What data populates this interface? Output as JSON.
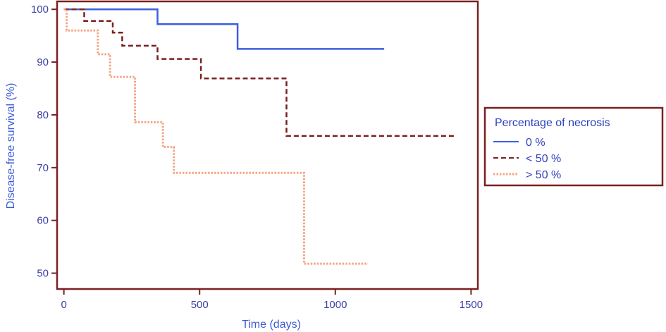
{
  "chart_data": {
    "type": "line",
    "step": true,
    "title": "",
    "xlabel": "Time (days)",
    "ylabel": "Disease-free survival (%)",
    "xlim": [
      -25,
      1525
    ],
    "ylim": [
      47,
      101.5
    ],
    "xticks": [
      0,
      500,
      1000,
      1500
    ],
    "yticks": [
      50,
      60,
      70,
      80,
      90,
      100
    ],
    "grid": false,
    "legend": {
      "title": "Percentage of necrosis",
      "placement": "right"
    },
    "series": [
      {
        "name": "0 %",
        "color": "#3a5fe0",
        "dash": "solid",
        "points": [
          [
            0,
            100
          ],
          [
            345,
            100
          ],
          [
            345,
            97.2
          ],
          [
            640,
            97.2
          ],
          [
            640,
            92.5
          ],
          [
            1180,
            92.5
          ]
        ]
      },
      {
        "name": "< 50 %",
        "color": "#7a2020",
        "dash": "dashed",
        "points": [
          [
            0,
            100
          ],
          [
            75,
            100
          ],
          [
            75,
            97.8
          ],
          [
            180,
            97.8
          ],
          [
            180,
            95.6
          ],
          [
            215,
            95.6
          ],
          [
            215,
            93.1
          ],
          [
            345,
            93.1
          ],
          [
            345,
            90.6
          ],
          [
            505,
            90.6
          ],
          [
            505,
            86.9
          ],
          [
            820,
            86.9
          ],
          [
            820,
            76.0
          ],
          [
            1440,
            76.0
          ]
        ]
      },
      {
        "name": "> 50 %",
        "color": "#f4a585",
        "dash": "dotted",
        "points": [
          [
            0,
            100
          ],
          [
            10,
            100
          ],
          [
            10,
            96.0
          ],
          [
            125,
            96.0
          ],
          [
            125,
            91.5
          ],
          [
            170,
            91.5
          ],
          [
            170,
            87.2
          ],
          [
            262,
            87.2
          ],
          [
            262,
            78.6
          ],
          [
            365,
            78.6
          ],
          [
            365,
            73.9
          ],
          [
            405,
            73.9
          ],
          [
            405,
            69.0
          ],
          [
            885,
            69.0
          ],
          [
            885,
            51.8
          ],
          [
            1120,
            51.8
          ]
        ]
      }
    ]
  }
}
